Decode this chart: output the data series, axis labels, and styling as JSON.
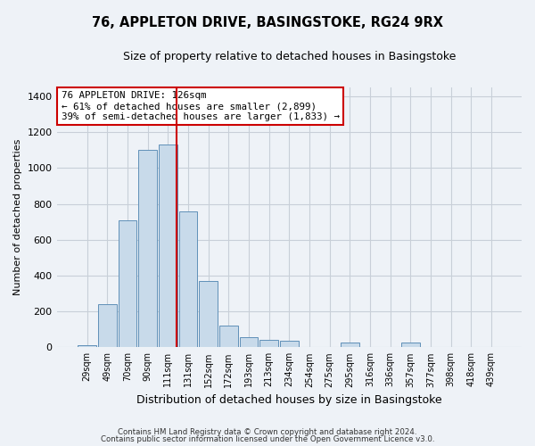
{
  "title": "76, APPLETON DRIVE, BASINGSTOKE, RG24 9RX",
  "subtitle": "Size of property relative to detached houses in Basingstoke",
  "xlabel": "Distribution of detached houses by size in Basingstoke",
  "ylabel": "Number of detached properties",
  "bar_color": "#c8daea",
  "bar_edge_color": "#6090b8",
  "categories": [
    "29sqm",
    "49sqm",
    "70sqm",
    "90sqm",
    "111sqm",
    "131sqm",
    "152sqm",
    "172sqm",
    "193sqm",
    "213sqm",
    "234sqm",
    "254sqm",
    "275sqm",
    "295sqm",
    "316sqm",
    "336sqm",
    "357sqm",
    "377sqm",
    "398sqm",
    "418sqm",
    "439sqm"
  ],
  "values": [
    10,
    240,
    710,
    1100,
    1130,
    760,
    370,
    120,
    55,
    40,
    38,
    0,
    0,
    25,
    0,
    0,
    25,
    0,
    0,
    0,
    0
  ],
  "ylim": [
    0,
    1450
  ],
  "yticks": [
    0,
    200,
    400,
    600,
    800,
    1000,
    1200,
    1400
  ],
  "annotation_box_text": "76 APPLETON DRIVE: 126sqm\n← 61% of detached houses are smaller (2,899)\n39% of semi-detached houses are larger (1,833) →",
  "vline_x": 4.42,
  "vline_color": "#cc0000",
  "box_edge_color": "#cc0000",
  "footnote1": "Contains HM Land Registry data © Crown copyright and database right 2024.",
  "footnote2": "Contains public sector information licensed under the Open Government Licence v3.0.",
  "background_color": "#eef2f7",
  "grid_color": "#c8cfd8"
}
